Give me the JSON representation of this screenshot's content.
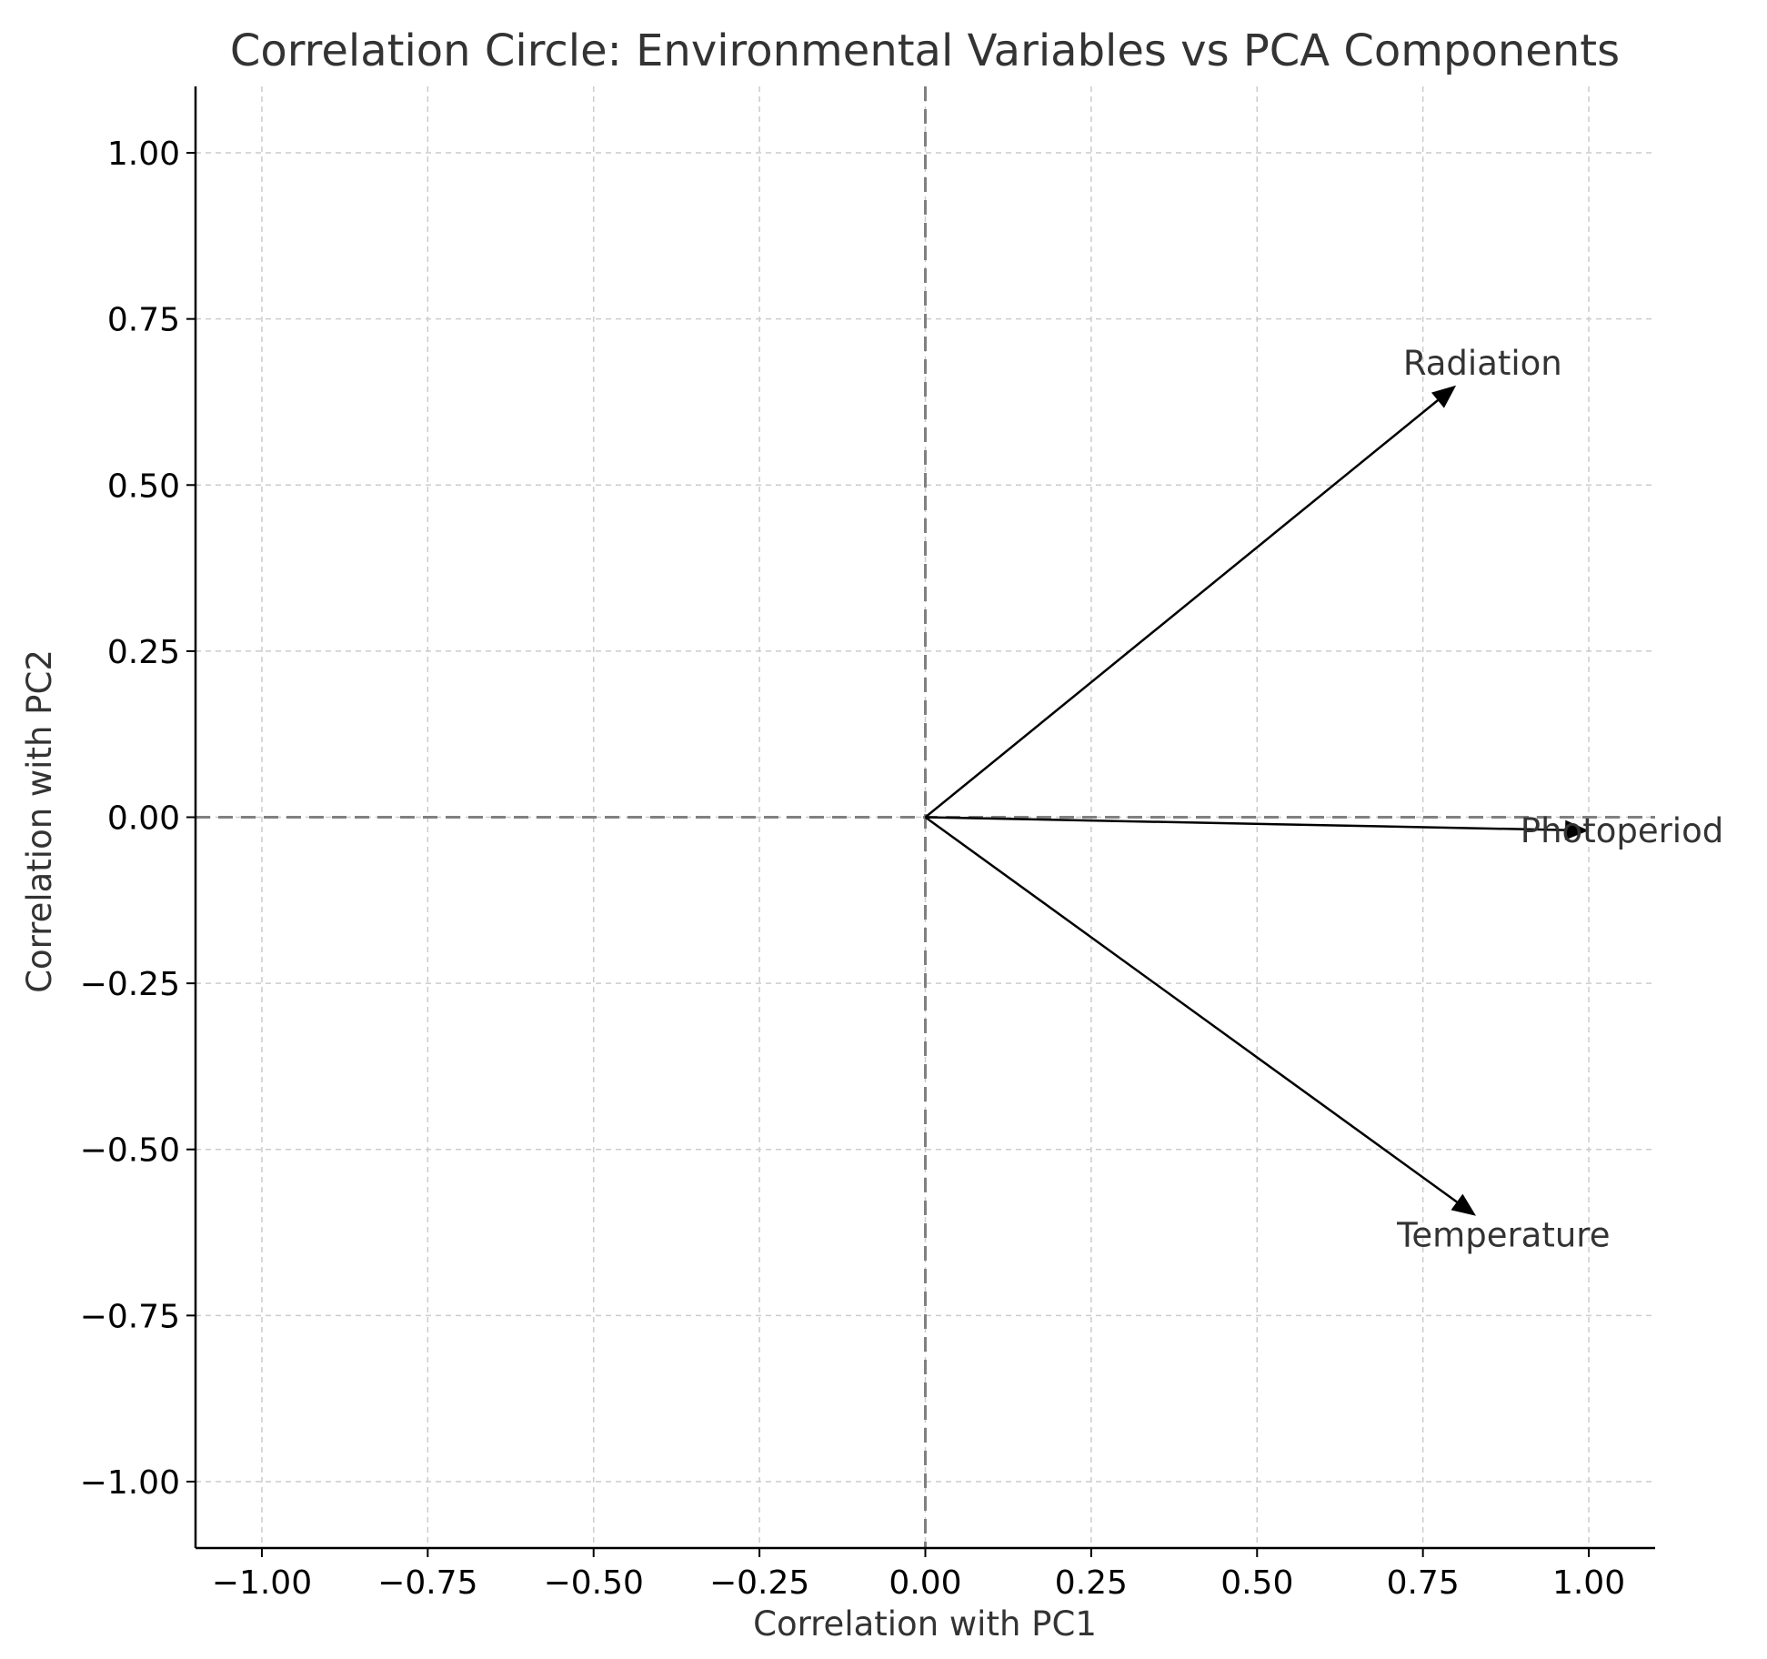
{
  "chart_data": {
    "type": "vector",
    "title": "Correlation Circle: Environmental Variables vs PCA Components",
    "xlabel": "Correlation with PC1",
    "ylabel": "Correlation with PC2",
    "xlim": [
      -1.1,
      1.1
    ],
    "ylim": [
      -1.1,
      1.1
    ],
    "xticks": [
      -1.0,
      -0.75,
      -0.5,
      -0.25,
      0.0,
      0.25,
      0.5,
      0.75,
      1.0
    ],
    "yticks": [
      -1.0,
      -0.75,
      -0.5,
      -0.25,
      0.0,
      0.25,
      0.5,
      0.75,
      1.0
    ],
    "xtick_labels": [
      "−1.00",
      "−0.75",
      "−0.50",
      "−0.25",
      "0.00",
      "0.25",
      "0.50",
      "0.75",
      "1.00"
    ],
    "ytick_labels": [
      "−1.00",
      "−0.75",
      "−0.50",
      "−0.25",
      "0.00",
      "0.25",
      "0.50",
      "0.75",
      "1.00"
    ],
    "grid": true,
    "reference_lines": [
      {
        "axis": "x",
        "value": 0
      },
      {
        "axis": "y",
        "value": 0
      }
    ],
    "vectors": [
      {
        "name": "Radiation",
        "x": 0.8,
        "y": 0.65,
        "label": "Radiation"
      },
      {
        "name": "Photoperiod",
        "x": 1.0,
        "y": -0.02,
        "label": "Photoperiod"
      },
      {
        "name": "Temperature",
        "x": 0.83,
        "y": -0.6,
        "label": "Temperature"
      }
    ],
    "colors": {
      "arrow": "#000000",
      "grid": "#cccccc",
      "reference": "#808080",
      "text": "#333333"
    }
  }
}
